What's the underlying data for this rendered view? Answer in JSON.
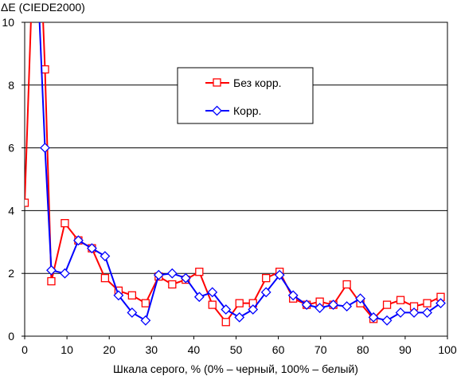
{
  "chart_data": {
    "type": "line",
    "title": "",
    "ylabel": "ΔE (CIEDE2000)",
    "xlabel": "Шкала серого, % (0% – черный, 100% – белый)",
    "xlim": [
      0,
      100
    ],
    "ylim": [
      0,
      10
    ],
    "xticks": [
      0,
      10,
      20,
      30,
      40,
      50,
      60,
      70,
      80,
      90,
      100
    ],
    "yticks": [
      0,
      2,
      4,
      6,
      8,
      10
    ],
    "grid": "horizontal",
    "legend_position": "center",
    "series": [
      {
        "name": "Без корр.",
        "color": "#ff0000",
        "marker": "square",
        "points": [
          [
            0,
            4.25
          ],
          [
            1.6,
            10.5
          ],
          [
            3.2,
            14
          ],
          [
            4.8,
            8.5
          ],
          [
            6.3,
            1.75
          ],
          [
            9.5,
            3.6
          ],
          [
            12.7,
            3.05
          ],
          [
            15.9,
            2.8
          ],
          [
            19.0,
            1.85
          ],
          [
            22.2,
            1.45
          ],
          [
            25.4,
            1.3
          ],
          [
            28.6,
            1.05
          ],
          [
            31.7,
            1.9
          ],
          [
            34.9,
            1.65
          ],
          [
            38.1,
            1.8
          ],
          [
            41.3,
            2.05
          ],
          [
            44.4,
            1.0
          ],
          [
            47.6,
            0.45
          ],
          [
            50.8,
            1.05
          ],
          [
            54.0,
            1.05
          ],
          [
            57.1,
            1.85
          ],
          [
            60.3,
            2.05
          ],
          [
            63.5,
            1.2
          ],
          [
            66.7,
            1.0
          ],
          [
            69.8,
            1.1
          ],
          [
            73.0,
            1.0
          ],
          [
            76.2,
            1.65
          ],
          [
            79.4,
            1.05
          ],
          [
            82.5,
            0.55
          ],
          [
            85.7,
            1.0
          ],
          [
            88.9,
            1.15
          ],
          [
            92.1,
            0.95
          ],
          [
            95.2,
            1.05
          ],
          [
            98.4,
            1.25
          ]
        ]
      },
      {
        "name": "Корр.",
        "color": "#0000ff",
        "marker": "diamond",
        "points": [
          [
            1.6,
            10.5
          ],
          [
            3.2,
            11
          ],
          [
            4.8,
            6
          ],
          [
            6.3,
            2.1
          ],
          [
            9.5,
            2.0
          ],
          [
            12.7,
            3.05
          ],
          [
            15.9,
            2.8
          ],
          [
            19.0,
            2.55
          ],
          [
            22.2,
            1.3
          ],
          [
            25.4,
            0.75
          ],
          [
            28.6,
            0.5
          ],
          [
            31.7,
            1.95
          ],
          [
            34.9,
            2.0
          ],
          [
            38.1,
            1.85
          ],
          [
            41.3,
            1.25
          ],
          [
            44.4,
            1.4
          ],
          [
            47.6,
            0.85
          ],
          [
            50.8,
            0.6
          ],
          [
            54.0,
            0.85
          ],
          [
            57.1,
            1.4
          ],
          [
            60.3,
            1.95
          ],
          [
            63.5,
            1.3
          ],
          [
            66.7,
            1.0
          ],
          [
            69.8,
            0.9
          ],
          [
            73.0,
            1.0
          ],
          [
            76.2,
            0.95
          ],
          [
            79.4,
            1.2
          ],
          [
            82.5,
            0.6
          ],
          [
            85.7,
            0.5
          ],
          [
            88.9,
            0.75
          ],
          [
            92.1,
            0.75
          ],
          [
            95.2,
            0.75
          ],
          [
            98.4,
            1.05
          ]
        ]
      }
    ]
  }
}
